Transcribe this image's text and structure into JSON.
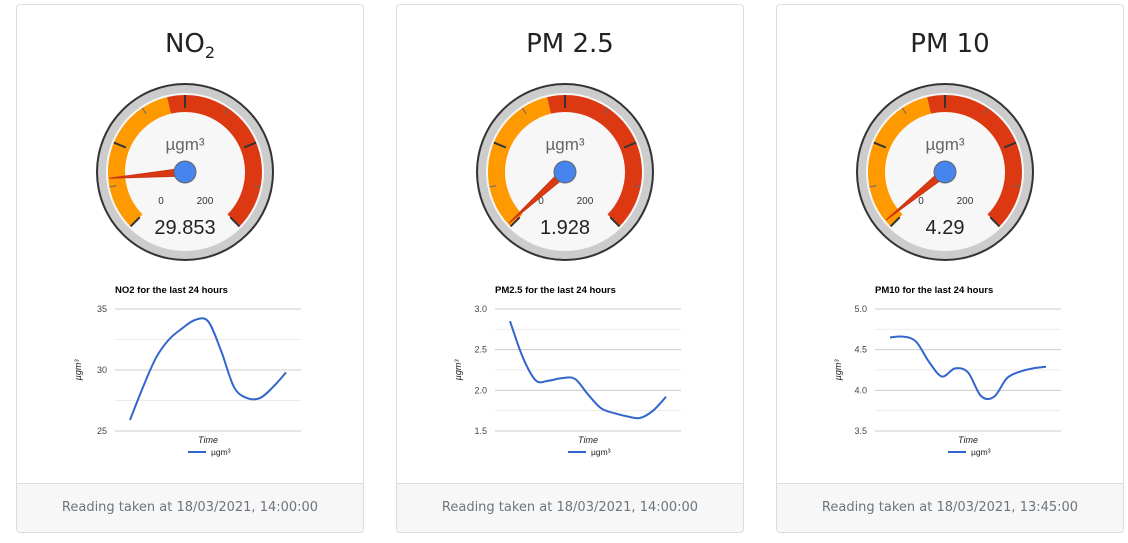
{
  "cards": [
    {
      "title_main": "NO",
      "title_sub": "2",
      "gauge": {
        "unit": "µgm³",
        "min_label": "0",
        "max_label": "200",
        "value_label": "29.853",
        "value": 29.853,
        "green_to": 0,
        "yellow_range": [
          0,
          90
        ],
        "red_range": [
          90,
          200
        ]
      },
      "footer": "Reading taken at 18/03/2021, 14:00:00"
    },
    {
      "title_main": "PM 2.5",
      "title_sub": "",
      "gauge": {
        "unit": "µgm³",
        "min_label": "0",
        "max_label": "200",
        "value_label": "1.928",
        "value": 1.928,
        "yellow_range": [
          0,
          90
        ],
        "red_range": [
          90,
          200
        ]
      },
      "footer": "Reading taken at 18/03/2021, 14:00:00"
    },
    {
      "title_main": "PM 10",
      "title_sub": "",
      "gauge": {
        "unit": "µgm³",
        "min_label": "0",
        "max_label": "200",
        "value_label": "4.29",
        "value": 4.29,
        "yellow_range": [
          0,
          90
        ],
        "red_range": [
          90,
          200
        ]
      },
      "footer": "Reading taken at 18/03/2021, 13:45:00"
    }
  ],
  "colors": {
    "yellow_band": "#ff9900",
    "red_band": "#dc3912",
    "needle": "#dc3912",
    "hub": "#4684ee",
    "line": "#3366cc",
    "grid": "#cccccc"
  },
  "chart_data": [
    {
      "type": "line",
      "title": "NO2 for the last 24 hours",
      "xlabel": "Time",
      "ylabel": "µgm³",
      "ylim": [
        25,
        35
      ],
      "yticks": [
        "35",
        "30",
        "25"
      ],
      "series": [
        {
          "name": "µgm³",
          "values": [
            25.9,
            28.6,
            31.0,
            32.5,
            33.4,
            34.1,
            34.0,
            31.6,
            28.6,
            27.7,
            27.7,
            28.6,
            29.8
          ]
        }
      ]
    },
    {
      "type": "line",
      "title": "PM2.5 for the last 24 hours",
      "xlabel": "Time",
      "ylabel": "µgm³",
      "ylim": [
        1.5,
        3.0
      ],
      "yticks": [
        "3.0",
        "2.5",
        "2.0",
        "1.5"
      ],
      "series": [
        {
          "name": "µgm³",
          "values": [
            2.85,
            2.4,
            2.12,
            2.12,
            2.15,
            2.14,
            1.95,
            1.78,
            1.72,
            1.68,
            1.66,
            1.75,
            1.92
          ]
        }
      ]
    },
    {
      "type": "line",
      "title": "PM10 for the last 24 hours",
      "xlabel": "Time",
      "ylabel": "µgm³",
      "ylim": [
        3.5,
        5.0
      ],
      "yticks": [
        "5.0",
        "4.5",
        "4.0",
        "3.5"
      ],
      "series": [
        {
          "name": "µgm³",
          "values": [
            4.65,
            4.66,
            4.6,
            4.35,
            4.17,
            4.27,
            4.22,
            3.93,
            3.92,
            4.15,
            4.23,
            4.27,
            4.29
          ]
        }
      ]
    }
  ]
}
